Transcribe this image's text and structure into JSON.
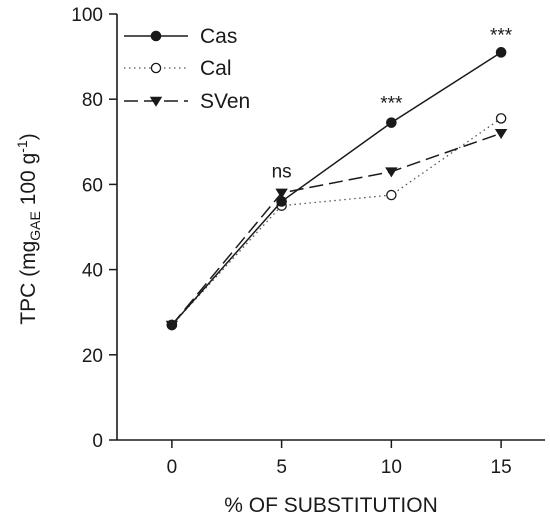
{
  "chart_data": {
    "type": "line",
    "xlabel": "% OF SUBSTITUTION",
    "ylabel": {
      "prefix": "TPC (mg",
      "sub": "GAE",
      "middle": " 100 g",
      "sup": "-1",
      "suffix": ")"
    },
    "x": [
      0,
      5,
      10,
      15
    ],
    "x_ticks": [
      "0",
      "5",
      "10",
      "15"
    ],
    "xlim": [
      -2.5,
      17
    ],
    "ylim": [
      0,
      100
    ],
    "y_ticks": [
      "0",
      "20",
      "40",
      "60",
      "80",
      "100"
    ],
    "grid": false,
    "legend_position": "top-left",
    "series": [
      {
        "name": "Cas",
        "values": [
          27,
          56,
          74.5,
          91
        ],
        "marker": "filled-circle",
        "line": "solid"
      },
      {
        "name": "Cal",
        "values": [
          27,
          55,
          57.5,
          75.5
        ],
        "marker": "open-circle",
        "line": "dotted"
      },
      {
        "name": "SVen",
        "values": [
          27,
          58,
          63,
          72
        ],
        "marker": "filled-triangle-down",
        "line": "long-dash"
      }
    ],
    "annotations": [
      {
        "text": "ns",
        "x": 5,
        "y": 63
      },
      {
        "text": "***",
        "x": 10,
        "y": 79
      },
      {
        "text": "***",
        "x": 15,
        "y": 95
      }
    ]
  }
}
